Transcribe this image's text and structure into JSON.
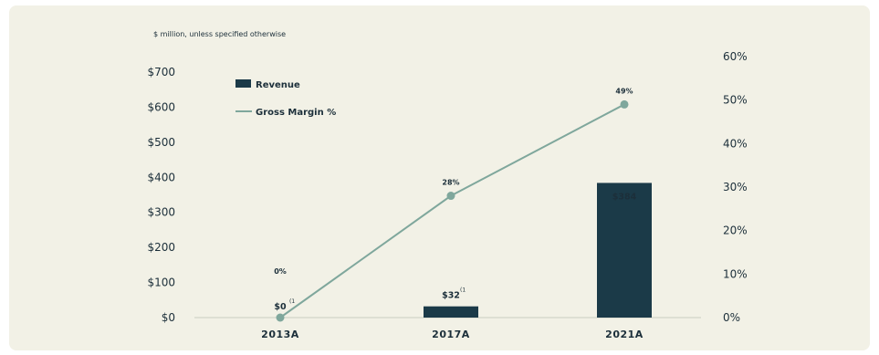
{
  "chart_data": {
    "type": "bar",
    "note": "$ million, unless specified otherwise",
    "categories": [
      "2013A",
      "2017A",
      "2021A"
    ],
    "series": [
      {
        "name": "Revenue",
        "kind": "bar",
        "axis": "left",
        "values": [
          0,
          32,
          384
        ],
        "labels": [
          "$0",
          "$32",
          "$384"
        ],
        "color": "#1b3a48"
      },
      {
        "name": "Gross Margin %",
        "kind": "line",
        "axis": "right",
        "values": [
          0,
          28,
          49
        ],
        "labels": [
          "0%",
          "28%",
          "49%"
        ],
        "color": "#7fa79c"
      }
    ],
    "footnote_marks": [
      "(1",
      "(1",
      ""
    ],
    "y_left": {
      "ylim": [
        0,
        700
      ],
      "ticks": [
        0,
        100,
        200,
        300,
        400,
        500,
        600,
        700
      ],
      "tick_labels": [
        "$0",
        "$100",
        "$200",
        "$300",
        "$400",
        "$500",
        "$600",
        "$700"
      ]
    },
    "y_right": {
      "ylim": [
        0,
        60
      ],
      "ticks": [
        0,
        10,
        20,
        30,
        40,
        50,
        60
      ],
      "tick_labels": [
        "0%",
        "10%",
        "20%",
        "30%",
        "40%",
        "50%",
        "60%"
      ]
    },
    "legend": {
      "position": "top-left",
      "items": [
        "Revenue",
        "Gross Margin %"
      ]
    },
    "grid": false
  }
}
